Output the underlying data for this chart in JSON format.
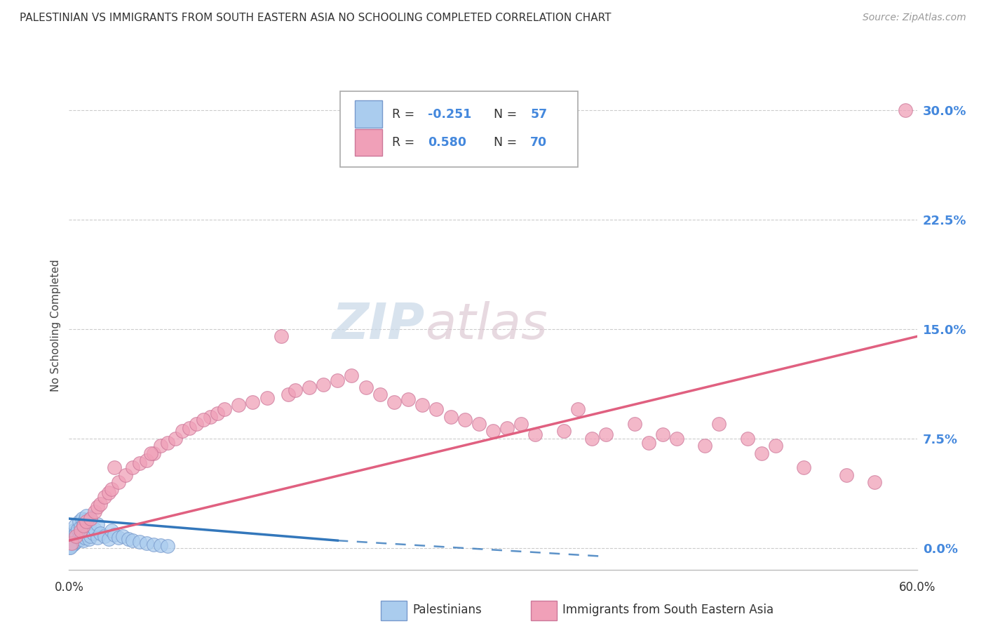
{
  "title": "PALESTINIAN VS IMMIGRANTS FROM SOUTH EASTERN ASIA NO SCHOOLING COMPLETED CORRELATION CHART",
  "source": "Source: ZipAtlas.com",
  "ylabel": "No Schooling Completed",
  "ytick_vals": [
    0.0,
    7.5,
    15.0,
    22.5,
    30.0
  ],
  "xlim": [
    0.0,
    60.0
  ],
  "ylim": [
    -1.5,
    32.0
  ],
  "legend_r1": "-0.251",
  "legend_n1": "57",
  "legend_r2": "0.580",
  "legend_n2": "70",
  "legend_label1": "Palestinians",
  "legend_label2": "Immigrants from South Eastern Asia",
  "color_palestinians": "#aaccee",
  "color_immigrants": "#f0a0b8",
  "color_line1": "#3377bb",
  "color_line2": "#e06080",
  "watermark1": "ZIP",
  "watermark2": "atlas",
  "palestinians_x": [
    0.05,
    0.1,
    0.1,
    0.15,
    0.15,
    0.2,
    0.2,
    0.25,
    0.25,
    0.3,
    0.3,
    0.35,
    0.35,
    0.4,
    0.4,
    0.45,
    0.45,
    0.5,
    0.5,
    0.6,
    0.6,
    0.7,
    0.7,
    0.8,
    0.8,
    0.9,
    0.9,
    1.0,
    1.0,
    1.1,
    1.1,
    1.2,
    1.2,
    1.4,
    1.4,
    1.5,
    1.5,
    1.7,
    1.8,
    2.0,
    2.0,
    2.2,
    2.5,
    2.8,
    3.0,
    3.2,
    3.5,
    3.8,
    4.2,
    4.5,
    5.0,
    5.5,
    6.0,
    6.5,
    7.0,
    0.05,
    0.08
  ],
  "palestinians_y": [
    0.1,
    0.2,
    0.5,
    0.3,
    0.8,
    0.15,
    0.6,
    0.4,
    1.0,
    0.2,
    0.7,
    0.5,
    1.2,
    0.3,
    0.9,
    0.6,
    1.5,
    0.4,
    1.0,
    0.5,
    1.3,
    0.7,
    1.8,
    0.6,
    1.4,
    0.8,
    2.0,
    0.5,
    1.6,
    0.7,
    1.9,
    0.9,
    2.2,
    0.6,
    1.5,
    0.8,
    2.0,
    1.0,
    1.3,
    0.7,
    1.6,
    1.0,
    0.8,
    0.6,
    1.2,
    0.9,
    0.7,
    0.8,
    0.6,
    0.5,
    0.4,
    0.3,
    0.2,
    0.15,
    0.1,
    0.05,
    0.05
  ],
  "immigrants_x": [
    0.2,
    0.5,
    0.8,
    1.0,
    1.2,
    1.5,
    1.8,
    2.0,
    2.2,
    2.5,
    2.8,
    3.0,
    3.5,
    4.0,
    4.5,
    5.0,
    5.5,
    6.0,
    6.5,
    7.0,
    7.5,
    8.0,
    8.5,
    9.0,
    10.0,
    10.5,
    11.0,
    12.0,
    13.0,
    14.0,
    15.0,
    15.5,
    16.0,
    17.0,
    18.0,
    19.0,
    20.0,
    21.0,
    22.0,
    23.0,
    24.0,
    25.0,
    26.0,
    27.0,
    28.0,
    29.0,
    30.0,
    31.0,
    32.0,
    33.0,
    35.0,
    36.0,
    37.0,
    38.0,
    40.0,
    41.0,
    42.0,
    43.0,
    45.0,
    46.0,
    48.0,
    49.0,
    50.0,
    52.0,
    55.0,
    57.0,
    59.2,
    3.2,
    5.8,
    9.5
  ],
  "immigrants_y": [
    0.3,
    0.8,
    1.2,
    1.5,
    1.8,
    2.0,
    2.5,
    2.8,
    3.0,
    3.5,
    3.8,
    4.0,
    4.5,
    5.0,
    5.5,
    5.8,
    6.0,
    6.5,
    7.0,
    7.2,
    7.5,
    8.0,
    8.2,
    8.5,
    9.0,
    9.2,
    9.5,
    9.8,
    10.0,
    10.3,
    14.5,
    10.5,
    10.8,
    11.0,
    11.2,
    11.5,
    11.8,
    11.0,
    10.5,
    10.0,
    10.2,
    9.8,
    9.5,
    9.0,
    8.8,
    8.5,
    8.0,
    8.2,
    8.5,
    7.8,
    8.0,
    9.5,
    7.5,
    7.8,
    8.5,
    7.2,
    7.8,
    7.5,
    7.0,
    8.5,
    7.5,
    6.5,
    7.0,
    5.5,
    5.0,
    4.5,
    30.0,
    5.5,
    6.5,
    8.8
  ],
  "line1_x0": 0.0,
  "line1_y0": 2.0,
  "line1_x1": 19.0,
  "line1_y1": 0.5,
  "line1_dash_x0": 19.0,
  "line1_dash_y0": 0.5,
  "line1_dash_x1": 38.0,
  "line1_dash_y1": -0.6,
  "line2_x0": 0.0,
  "line2_y0": 0.5,
  "line2_x1": 60.0,
  "line2_y1": 14.5
}
